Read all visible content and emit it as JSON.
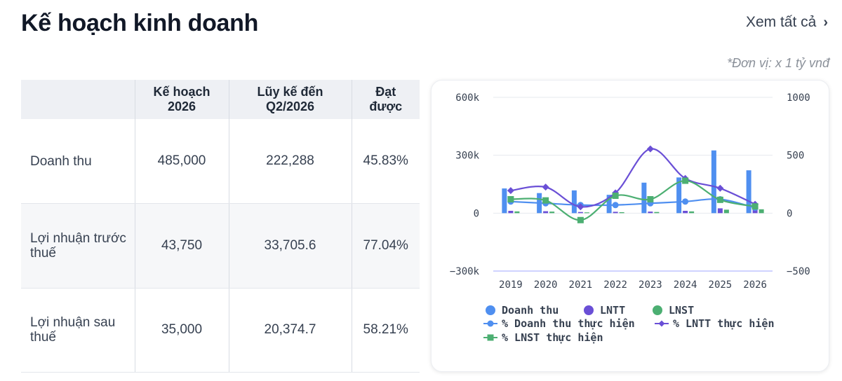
{
  "header": {
    "title": "Kế hoạch kinh doanh",
    "see_all_label": "Xem tất cả",
    "unit_note": "*Đơn vị: x 1 tỷ vnđ"
  },
  "table": {
    "headers": [
      "",
      "Kế hoạch\n2026",
      "Lũy kế đến\nQ2/2026",
      "Đạt\nđược"
    ],
    "rows": [
      {
        "label": "Doanh thu",
        "plan": "485,000",
        "cumulative": "222,288",
        "achieved": "45.83%"
      },
      {
        "label": "Lợi nhuận trước thuế",
        "plan": "43,750",
        "cumulative": "33,705.6",
        "achieved": "77.04%"
      },
      {
        "label": "Lợi nhuận sau thuế",
        "plan": "35,000",
        "cumulative": "20,374.7",
        "achieved": "58.21%"
      }
    ]
  },
  "colors": {
    "revenue": "#4f8ff0",
    "lntt": "#6a4fd6",
    "lnst": "#4caf72",
    "grid": "#e6e8ee",
    "zero_line": "#cfd3ff"
  },
  "chart_data": {
    "type": "bar",
    "categories": [
      "2019",
      "2020",
      "2021",
      "2022",
      "2023",
      "2024",
      "2025",
      "2026"
    ],
    "y_left": {
      "ticks": [
        "600k",
        "300k",
        "0",
        "−300k"
      ],
      "ylim": [
        -300000,
        600000
      ]
    },
    "y_right": {
      "ticks": [
        "1000",
        "500",
        "0",
        "−500"
      ],
      "ylim": [
        -500,
        1000
      ]
    },
    "legend_placement": "bottom",
    "series": [
      {
        "name": "Doanh thu",
        "kind": "bar",
        "axis": "left",
        "color": "#4f8ff0",
        "values": [
          128000,
          104000,
          118000,
          95000,
          158000,
          185000,
          325000,
          222000
        ]
      },
      {
        "name": "LNTT",
        "kind": "bar",
        "axis": "left",
        "color": "#6a4fd6",
        "values": [
          12000,
          10000,
          6000,
          7000,
          8000,
          12000,
          25000,
          34000
        ]
      },
      {
        "name": "LNST",
        "kind": "bar",
        "axis": "left",
        "color": "#4caf72",
        "values": [
          9000,
          8000,
          4000,
          5000,
          6000,
          9000,
          18000,
          20000
        ]
      },
      {
        "name": "% Doanh thu thực hiện",
        "kind": "line",
        "axis": "right",
        "color": "#4f8ff0",
        "values": [
          100,
          85,
          70,
          70,
          85,
          100,
          120,
          46
        ]
      },
      {
        "name": "% LNTT thực hiện",
        "kind": "line",
        "axis": "right",
        "color": "#6a4fd6",
        "values": [
          195,
          225,
          55,
          175,
          555,
          300,
          215,
          77
        ]
      },
      {
        "name": "% LNST thực hiện",
        "kind": "line",
        "axis": "right",
        "color": "#4caf72",
        "values": [
          120,
          110,
          -60,
          150,
          120,
          280,
          115,
          58
        ]
      }
    ]
  }
}
